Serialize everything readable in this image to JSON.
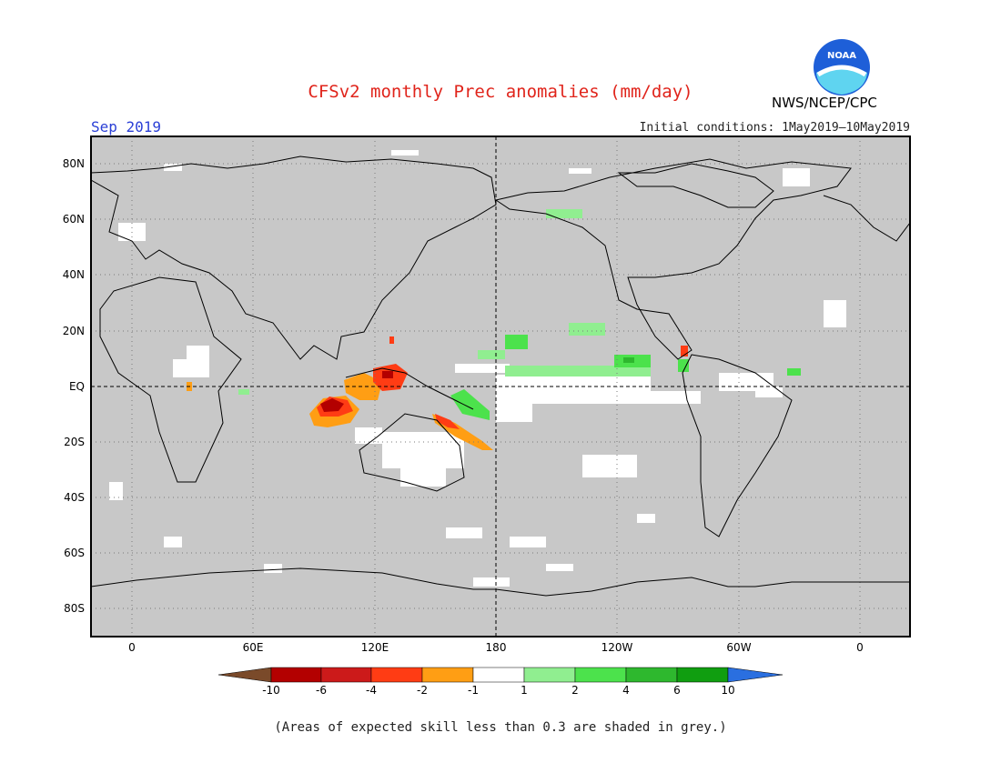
{
  "header": {
    "title": "CFSv2 monthly Prec anomalies (mm/day)",
    "month": "Sep 2019",
    "initial_conditions": "Initial conditions: 1May2019—10May2019",
    "org": "NWS/NCEP/CPC",
    "logo_text": "NOAA"
  },
  "axes": {
    "lat_labels": [
      "80N",
      "60N",
      "40N",
      "20N",
      "EQ",
      "20S",
      "40S",
      "60S",
      "80S"
    ],
    "lon_labels": [
      "0",
      "60E",
      "120E",
      "180",
      "120W",
      "60W",
      "0"
    ]
  },
  "colorbar": {
    "tick_labels": [
      "-10",
      "-6",
      "-4",
      "-2",
      "-1",
      "1",
      "2",
      "4",
      "6",
      "10"
    ],
    "colors": [
      "#7a4a2a",
      "#b30000",
      "#cc1a1a",
      "#ff3c14",
      "#ff9e14",
      "#ffffff",
      "#90ee90",
      "#4ce24c",
      "#2eb82e",
      "#109e10",
      "#2a6fe0"
    ]
  },
  "colors": {
    "skill_grey": "#c8c8c8",
    "coast": "#000000",
    "title_red": "#e0241b",
    "month_blue": "#2a3fd6"
  },
  "footnote": "(Areas of expected skill less than 0.3 are shaded in grey.)"
}
